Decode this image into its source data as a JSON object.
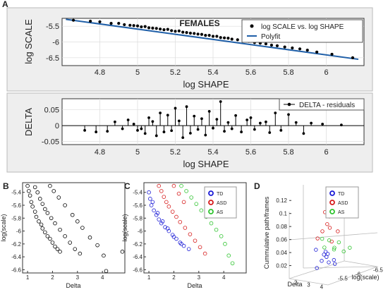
{
  "chart_data": [
    {
      "panel": "A",
      "type": "scatter",
      "title": "FEMALES",
      "xlabel": "log SHAPE",
      "ylabel": "log SCALE",
      "xlim": [
        4.6,
        6.2
      ],
      "ylim": [
        -6.75,
        -5.25
      ],
      "xticks": [
        4.8,
        5,
        5.2,
        5.4,
        5.6,
        5.8,
        6
      ],
      "yticks": [
        -5.5,
        -6,
        -6.5
      ],
      "grid": true,
      "legend_position": "top-right",
      "series": [
        {
          "name": "log SCALE vs. log SHAPE",
          "style": "points",
          "color": "#000000",
          "points": [
            [
              4.66,
              -5.31
            ],
            [
              4.75,
              -5.34
            ],
            [
              4.8,
              -5.36
            ],
            [
              4.86,
              -5.41
            ],
            [
              4.9,
              -5.41
            ],
            [
              4.93,
              -5.45
            ],
            [
              4.96,
              -5.47
            ],
            [
              4.98,
              -5.48
            ],
            [
              5.0,
              -5.49
            ],
            [
              5.02,
              -5.52
            ],
            [
              5.04,
              -5.51
            ],
            [
              5.06,
              -5.55
            ],
            [
              5.08,
              -5.56
            ],
            [
              5.1,
              -5.57
            ],
            [
              5.12,
              -5.59
            ],
            [
              5.14,
              -5.61
            ],
            [
              5.16,
              -5.6
            ],
            [
              5.18,
              -5.64
            ],
            [
              5.2,
              -5.66
            ],
            [
              5.22,
              -5.65
            ],
            [
              5.24,
              -5.69
            ],
            [
              5.26,
              -5.7
            ],
            [
              5.28,
              -5.72
            ],
            [
              5.3,
              -5.73
            ],
            [
              5.32,
              -5.75
            ],
            [
              5.34,
              -5.76
            ],
            [
              5.36,
              -5.79
            ],
            [
              5.38,
              -5.79
            ],
            [
              5.4,
              -5.82
            ],
            [
              5.42,
              -5.82
            ],
            [
              5.44,
              -5.86
            ],
            [
              5.46,
              -5.87
            ],
            [
              5.48,
              -5.88
            ],
            [
              5.5,
              -5.91
            ],
            [
              5.53,
              -5.93
            ],
            [
              5.56,
              -5.96
            ],
            [
              5.59,
              -5.98
            ],
            [
              5.62,
              -6.02
            ],
            [
              5.65,
              -6.04
            ],
            [
              5.68,
              -6.06
            ],
            [
              5.71,
              -6.1
            ],
            [
              5.74,
              -6.12
            ],
            [
              5.78,
              -6.16
            ],
            [
              5.82,
              -6.19
            ],
            [
              5.86,
              -6.22
            ],
            [
              5.9,
              -6.26
            ],
            [
              5.95,
              -6.32
            ],
            [
              6.03,
              -6.39
            ],
            [
              6.14,
              -6.5
            ]
          ]
        },
        {
          "name": "Polyfit",
          "style": "line",
          "color": "#1f5fa8",
          "points": [
            [
              4.62,
              -5.28
            ],
            [
              6.17,
              -6.55
            ]
          ]
        }
      ]
    },
    {
      "panel": "A",
      "type": "stem",
      "xlabel": "log SHAPE",
      "ylabel": "DELTA",
      "xlim": [
        4.6,
        6.2
      ],
      "ylim": [
        -0.06,
        0.085
      ],
      "xticks": [
        4.8,
        5,
        5.2,
        5.4,
        5.6,
        5.8,
        6
      ],
      "yticks": [
        0.05,
        0,
        -0.05
      ],
      "grid": true,
      "legend_position": "top-right",
      "series": [
        {
          "name": "DELTA - residuals",
          "color": "#000000",
          "points": [
            [
              4.72,
              -0.015
            ],
            [
              4.78,
              -0.02
            ],
            [
              4.84,
              -0.018
            ],
            [
              4.88,
              0.012
            ],
            [
              4.92,
              -0.01
            ],
            [
              4.95,
              0.018
            ],
            [
              4.98,
              0.005
            ],
            [
              5.0,
              -0.015
            ],
            [
              5.02,
              -0.01
            ],
            [
              5.04,
              -0.025
            ],
            [
              5.06,
              0.025
            ],
            [
              5.08,
              0.013
            ],
            [
              5.1,
              -0.032
            ],
            [
              5.12,
              0.04
            ],
            [
              5.14,
              -0.02
            ],
            [
              5.16,
              0.033
            ],
            [
              5.18,
              -0.016
            ],
            [
              5.2,
              0.055
            ],
            [
              5.22,
              0.015
            ],
            [
              5.24,
              -0.038
            ],
            [
              5.26,
              0.06
            ],
            [
              5.28,
              -0.024
            ],
            [
              5.3,
              0.03
            ],
            [
              5.32,
              -0.012
            ],
            [
              5.34,
              0.022
            ],
            [
              5.36,
              -0.03
            ],
            [
              5.38,
              0.045
            ],
            [
              5.4,
              -0.008
            ],
            [
              5.42,
              0.02
            ],
            [
              5.44,
              0.076
            ],
            [
              5.46,
              -0.018
            ],
            [
              5.48,
              0.01
            ],
            [
              5.5,
              -0.01
            ],
            [
              5.52,
              0.032
            ],
            [
              5.55,
              -0.02
            ],
            [
              5.58,
              0.018
            ],
            [
              5.6,
              0.025
            ],
            [
              5.62,
              -0.012
            ],
            [
              5.65,
              0.008
            ],
            [
              5.68,
              0.012
            ],
            [
              5.7,
              -0.022
            ],
            [
              5.73,
              0.04
            ],
            [
              5.76,
              -0.015
            ],
            [
              5.8,
              0.035
            ],
            [
              5.84,
              0.01
            ],
            [
              5.88,
              -0.025
            ],
            [
              5.92,
              0.008
            ],
            [
              5.98,
              0.005
            ],
            [
              6.08,
              0.002
            ]
          ]
        }
      ]
    },
    {
      "panel": "B",
      "type": "scatter",
      "xlabel": "Delta",
      "ylabel": "log(scale)",
      "xlim": [
        0.8,
        4.9
      ],
      "ylim": [
        -6.65,
        -5.25
      ],
      "xticks": [
        1,
        2,
        3,
        4
      ],
      "yticks": [
        -5.4,
        -5.6,
        -5.8,
        -6,
        -6.2,
        -6.4,
        -6.6
      ],
      "series": [
        {
          "color": "#000000",
          "points": [
            [
              1.0,
              -5.3
            ],
            [
              1.05,
              -5.38
            ],
            [
              1.1,
              -5.45
            ],
            [
              1.15,
              -5.55
            ],
            [
              1.2,
              -5.62
            ],
            [
              1.3,
              -5.7
            ],
            [
              1.35,
              -5.78
            ],
            [
              1.45,
              -5.85
            ],
            [
              1.55,
              -5.9
            ],
            [
              1.6,
              -5.96
            ],
            [
              1.7,
              -6.02
            ],
            [
              1.8,
              -6.08
            ],
            [
              1.9,
              -6.12
            ],
            [
              2.0,
              -6.18
            ],
            [
              2.1,
              -6.24
            ],
            [
              2.2,
              -6.28
            ],
            [
              2.3,
              -6.32
            ],
            [
              1.3,
              -5.32
            ],
            [
              1.4,
              -5.4
            ],
            [
              1.5,
              -5.5
            ],
            [
              1.6,
              -5.58
            ],
            [
              1.7,
              -5.66
            ],
            [
              1.8,
              -5.72
            ],
            [
              1.95,
              -5.8
            ],
            [
              2.1,
              -5.88
            ],
            [
              2.3,
              -5.98
            ],
            [
              2.5,
              -6.08
            ],
            [
              2.7,
              -6.18
            ],
            [
              2.9,
              -6.28
            ],
            [
              3.1,
              -6.35
            ],
            [
              1.9,
              -5.3
            ],
            [
              2.05,
              -5.38
            ],
            [
              2.25,
              -5.48
            ],
            [
              2.5,
              -5.6
            ],
            [
              2.8,
              -5.75
            ],
            [
              3.0,
              -5.85
            ],
            [
              3.2,
              -5.95
            ],
            [
              3.5,
              -6.1
            ],
            [
              3.8,
              -6.22
            ],
            [
              4.05,
              -6.38
            ],
            [
              4.15,
              -6.62
            ],
            [
              4.8,
              -6.32
            ]
          ]
        }
      ]
    },
    {
      "panel": "C",
      "type": "scatter",
      "xlabel": "Delta",
      "ylabel": "log(scale)",
      "xlim": [
        0.8,
        4.9
      ],
      "ylim": [
        -6.65,
        -5.25
      ],
      "xticks": [
        1,
        2,
        3,
        4
      ],
      "yticks": [
        -5.4,
        -5.6,
        -5.8,
        -6,
        -6.2,
        -6.4,
        -6.6
      ],
      "legend_position": "top-right",
      "series": [
        {
          "name": "TD",
          "color": "#1a1ad6",
          "points": [
            [
              1.0,
              -5.4
            ],
            [
              1.05,
              -5.5
            ],
            [
              1.1,
              -5.6
            ],
            [
              1.2,
              -5.68
            ],
            [
              1.3,
              -5.75
            ],
            [
              1.4,
              -5.82
            ],
            [
              1.5,
              -5.88
            ],
            [
              1.65,
              -5.94
            ],
            [
              1.8,
              -6.0
            ],
            [
              1.95,
              -6.06
            ],
            [
              2.1,
              -6.12
            ],
            [
              2.25,
              -6.18
            ],
            [
              2.4,
              -6.23
            ],
            [
              2.6,
              -6.28
            ],
            [
              1.15,
              -5.55
            ],
            [
              1.35,
              -5.72
            ],
            [
              1.55,
              -5.85
            ],
            [
              1.75,
              -5.96
            ],
            [
              2.0,
              -6.09
            ],
            [
              2.3,
              -6.2
            ]
          ]
        },
        {
          "name": "ASD",
          "color": "#d61a1a",
          "points": [
            [
              1.4,
              -5.3
            ],
            [
              1.5,
              -5.38
            ],
            [
              1.6,
              -5.47
            ],
            [
              1.7,
              -5.55
            ],
            [
              1.8,
              -5.62
            ],
            [
              1.95,
              -5.7
            ],
            [
              2.1,
              -5.78
            ],
            [
              2.25,
              -5.86
            ],
            [
              2.45,
              -5.95
            ],
            [
              2.65,
              -6.05
            ],
            [
              2.85,
              -6.15
            ],
            [
              3.05,
              -6.25
            ],
            [
              3.25,
              -6.35
            ],
            [
              2.0,
              -5.3
            ],
            [
              2.2,
              -5.42
            ],
            [
              2.4,
              -5.55
            ]
          ]
        },
        {
          "name": "AS",
          "color": "#2ec42e",
          "points": [
            [
              2.3,
              -5.3
            ],
            [
              2.5,
              -5.38
            ],
            [
              2.7,
              -5.48
            ],
            [
              2.9,
              -5.58
            ],
            [
              3.1,
              -5.68
            ],
            [
              3.3,
              -5.78
            ],
            [
              3.5,
              -5.88
            ],
            [
              3.7,
              -5.98
            ],
            [
              3.9,
              -6.08
            ],
            [
              4.05,
              -6.2
            ],
            [
              4.2,
              -6.38
            ],
            [
              4.35,
              -6.5
            ]
          ]
        }
      ]
    },
    {
      "panel": "D",
      "type": "scatter3d",
      "xlabel": "Delta",
      "ylabel": "log(scale)",
      "zlabel": "Cummulative path/frames",
      "xticks": [
        2,
        3,
        4
      ],
      "yticks": [
        -5.5,
        -6,
        -6.5
      ],
      "zticks": [
        0.02,
        0.04,
        0.06,
        0.08,
        0.1,
        0.12
      ],
      "zlim": [
        0,
        0.13
      ],
      "legend_position": "top-right",
      "series": [
        {
          "name": "TD",
          "color": "#1a1ad6",
          "points": [
            [
              2.0,
              -5.9,
              0.01
            ],
            [
              2.1,
              -6.0,
              0.02
            ],
            [
              2.2,
              -6.1,
              0.025
            ],
            [
              2.3,
              -6.1,
              0.03
            ],
            [
              2.1,
              -6.2,
              0.015
            ],
            [
              2.4,
              -6.0,
              0.035
            ],
            [
              2.2,
              -5.8,
              0.04
            ],
            [
              2.3,
              -6.3,
              0.012
            ],
            [
              2.5,
              -6.2,
              0.02
            ],
            [
              2.0,
              -6.1,
              0.028
            ]
          ]
        },
        {
          "name": "ASD",
          "color": "#d61a1a",
          "points": [
            [
              2.6,
              -5.7,
              0.06
            ],
            [
              2.7,
              -5.8,
              0.07
            ],
            [
              2.8,
              -5.9,
              0.08
            ],
            [
              2.7,
              -6.0,
              0.09
            ],
            [
              2.9,
              -5.8,
              0.1
            ],
            [
              2.6,
              -6.1,
              0.05
            ],
            [
              2.8,
              -6.2,
              0.065
            ],
            [
              3.0,
              -5.9,
              0.075
            ]
          ]
        },
        {
          "name": "AS",
          "color": "#2ec42e",
          "points": [
            [
              3.4,
              -5.6,
              0.05
            ],
            [
              3.5,
              -5.7,
              0.06
            ],
            [
              3.6,
              -5.8,
              0.045
            ],
            [
              3.7,
              -5.9,
              0.055
            ],
            [
              3.8,
              -6.0,
              0.04
            ],
            [
              3.5,
              -5.5,
              0.065
            ],
            [
              3.9,
              -5.7,
              0.05
            ],
            [
              4.0,
              -6.1,
              0.045
            ]
          ]
        }
      ]
    }
  ]
}
